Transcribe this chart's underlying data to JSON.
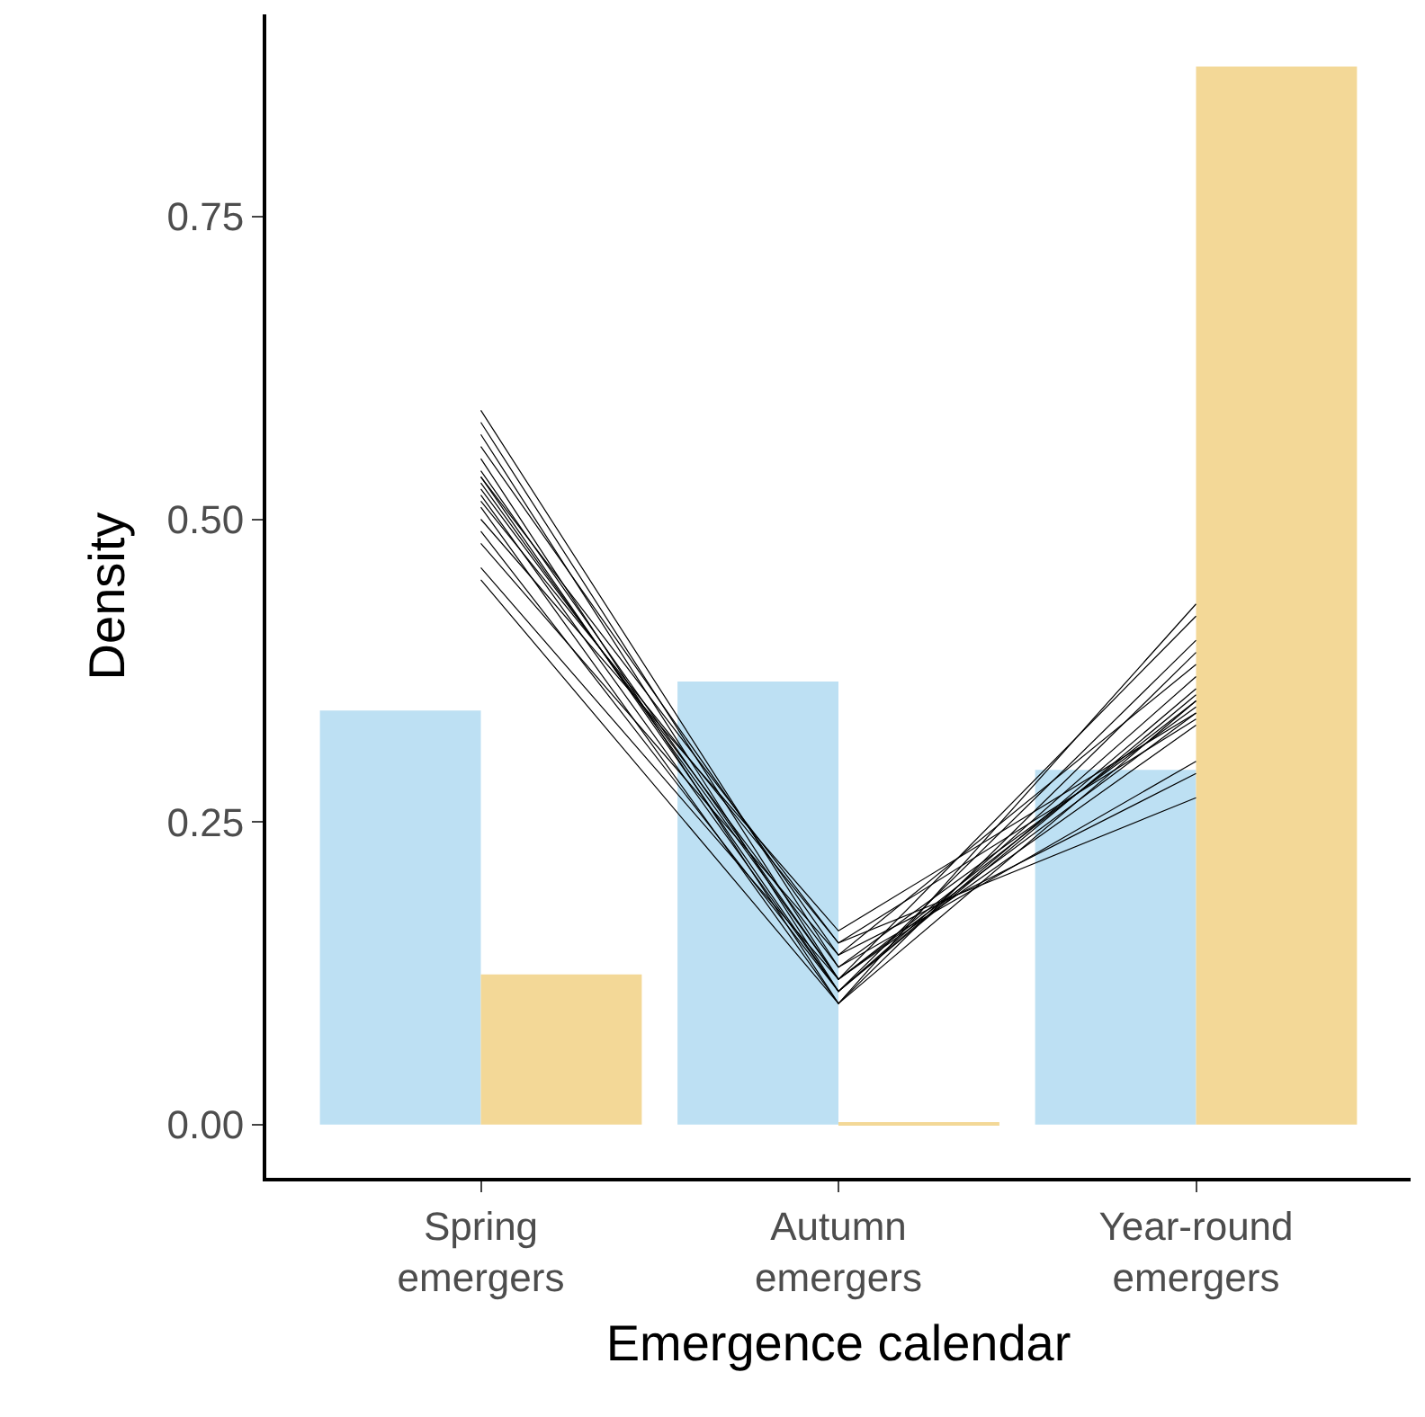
{
  "chart_data": {
    "type": "bar",
    "xlabel": "Emergence calendar",
    "ylabel": "Density",
    "categories": [
      "Spring\nemergers",
      "Autumn\nemergers",
      "Year-round\nemergers"
    ],
    "ylim": [
      -0.044,
      0.917
    ],
    "yticks": [
      {
        "value": 0,
        "label": "0.00"
      },
      {
        "value": 0.25,
        "label": "0.25"
      },
      {
        "value": 0.5,
        "label": "0.50"
      },
      {
        "value": 0.75,
        "label": "0.75"
      }
    ],
    "series": [
      {
        "color": "#bde0f3",
        "values": [
          0.342,
          0.366,
          0.293
        ]
      },
      {
        "color": "#f3d897",
        "values": [
          0.124,
          0.002,
          0.874
        ]
      },
      {
        "type": "line",
        "color": "#000000",
        "values": [
          0.59,
          0.13,
          0.3
        ]
      },
      {
        "type": "line",
        "color": "#000000",
        "values": [
          0.58,
          0.12,
          0.33
        ]
      },
      {
        "type": "line",
        "color": "#000000",
        "values": [
          0.57,
          0.11,
          0.36
        ]
      },
      {
        "type": "line",
        "color": "#000000",
        "values": [
          0.56,
          0.14,
          0.29
        ]
      },
      {
        "type": "line",
        "color": "#000000",
        "values": [
          0.55,
          0.1,
          0.35
        ]
      },
      {
        "type": "line",
        "color": "#000000",
        "values": [
          0.54,
          0.12,
          0.34
        ]
      },
      {
        "type": "line",
        "color": "#000000",
        "values": [
          0.535,
          0.11,
          0.355
        ]
      },
      {
        "type": "line",
        "color": "#000000",
        "values": [
          0.53,
          0.12,
          0.35
        ]
      },
      {
        "type": "line",
        "color": "#000000",
        "values": [
          0.525,
          0.13,
          0.345
        ]
      },
      {
        "type": "line",
        "color": "#000000",
        "values": [
          0.52,
          0.11,
          0.37
        ]
      },
      {
        "type": "line",
        "color": "#000000",
        "values": [
          0.515,
          0.15,
          0.335
        ]
      },
      {
        "type": "line",
        "color": "#000000",
        "values": [
          0.51,
          0.1,
          0.39
        ]
      },
      {
        "type": "line",
        "color": "#000000",
        "values": [
          0.5,
          0.16,
          0.34
        ]
      },
      {
        "type": "line",
        "color": "#000000",
        "values": [
          0.49,
          0.11,
          0.4
        ]
      },
      {
        "type": "line",
        "color": "#000000",
        "values": [
          0.48,
          0.14,
          0.38
        ]
      },
      {
        "type": "line",
        "color": "#000000",
        "values": [
          0.46,
          0.12,
          0.42
        ]
      },
      {
        "type": "line",
        "color": "#000000",
        "values": [
          0.45,
          0.1,
          0.43
        ]
      },
      {
        "type": "line",
        "color": "#000000",
        "values": [
          0.535,
          0.15,
          0.27
        ]
      }
    ]
  }
}
